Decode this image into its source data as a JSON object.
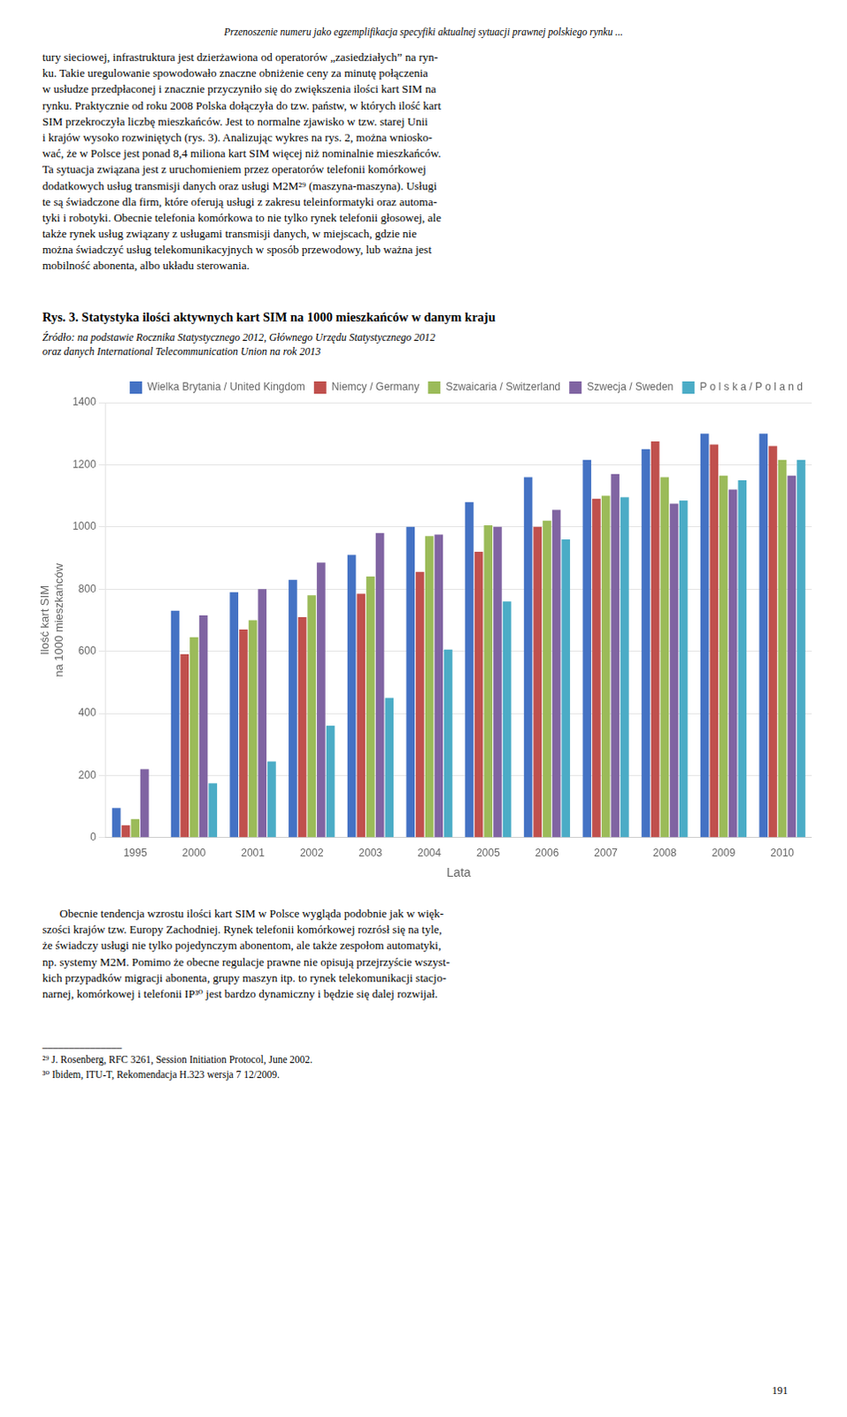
{
  "chart_data": {
    "type": "bar",
    "title": "Rys. 3. Statystyka ilości aktywnych kart SIM na 1000 mieszkańców w danym kraju",
    "xlabel": "Lata",
    "ylabel": "Ilość kart SIM\nna 1000 mieszkańców",
    "categories": [
      "1995",
      "2000",
      "2001",
      "2002",
      "2003",
      "2004",
      "2005",
      "2006",
      "2007",
      "2008",
      "2009",
      "2010"
    ],
    "series": [
      {
        "name": "Wielka Brytania / United Kingdom",
        "color": "#4472C4",
        "values": [
          95,
          730,
          790,
          830,
          910,
          1000,
          1080,
          1160,
          1215,
          1250,
          1300,
          1300
        ]
      },
      {
        "name": "Niemcy / Germany",
        "color": "#C0504D",
        "values": [
          40,
          590,
          670,
          710,
          785,
          855,
          920,
          1000,
          1090,
          1275,
          1265,
          1260
        ]
      },
      {
        "name": "Szwaicaria / Switzerland",
        "color": "#9BBB59",
        "values": [
          60,
          645,
          700,
          780,
          840,
          970,
          1005,
          1020,
          1100,
          1160,
          1165,
          1215
        ]
      },
      {
        "name": "Szwecja / Sweden",
        "color": "#8064A2",
        "values": [
          220,
          715,
          800,
          885,
          980,
          975,
          1000,
          1055,
          1170,
          1075,
          1120,
          1165
        ]
      },
      {
        "name": "P o l s k a / P o l a n d",
        "color": "#4BACC6",
        "values": [
          0,
          175,
          245,
          360,
          450,
          605,
          760,
          960,
          1095,
          1085,
          1150,
          1215
        ]
      }
    ],
    "ylim": [
      0,
      1400
    ],
    "yticks": [
      0,
      200,
      400,
      600,
      800,
      1000,
      1200,
      1400
    ],
    "grid": true,
    "legend": "upper right",
    "annotations": [
      "Przenoszenie numeru jako egzemplifikacja specyfiki aktualnej sytuacji prawnej polskiego rynku ...",
      "tury sieciowej, infrastruktura jest dzierżawiona od operatorów „zasiedziałych” na ryn-\nku. Takie uregulowanie spowodowało znaczne obniżenie ceny za minutę połączenia\nw usłudze przedpłaconej i znacznie przyczyniło się do zwiększenia ilości kart SIM na\nrynku. Praktycznie od roku 2008 Polska dołączyła do tzw. państw, w których ilość kart\nSIM przekroczyła liczbę mieszkańców. Jest to normalne zjawisko w tzw. starej Unii\ni krajów wysoko rozwiniętych (rys. 3). Analizując wykres na rys. 2, można wniosko-\nwać, że w Polsce jest ponad 8,4 miliona kart SIM więcej niż nominalnie mieszkańców.\nTa sytuacja związana jest z uruchomieniem przez operatorów telefonii komórkowej\ndodatkowych usług transmisji danych oraz usługi M2M²⁹ (maszyna-maszyna). Usługi\nte są świadczone dla firm, które oferują usługi z zakresu teleinformatyki oraz automa-\ntyki i robotyki. Obecnie telefonia komórkowa to nie tylko rynek telefonii głosowej, ale\ntakże rynek usług związany z usługami transmisji danych, w miejscach, gdzie nie\nmożna świadczyć usług telekomunikacyjnych w sposób przewodowy, lub ważna jest\nmobilność abonenta, albo układu sterowania.",
      "Źródło: na podstawie Rocznika Statystycznego 2012, Głównego Urzędu Statystycznego 2012\noraz danych International Telecommunication Union na rok 2013",
      "      Obecnie tendencja wzrostu ilości kart SIM w Polsce wygląda podobnie jak w więk-\nszości krajów tzw. Europy Zachodniej. Rynek telefonii komórkowej rozrósł się na tyle,\nże świadczy usługi nie tylko pojedynczym abonentom, ale także zespołom automatyki,\nnp. systemy M2M. Pomimo że obecne regulacje prawne nie opisują przejrzyście wszyst-\nkich przypadków migracji abonenta, grupy maszyn itp. to rynek telekomunikacji stacjo-\nnarnej, komórkowej i telefonii IP³⁰ jest bardzo dynamiczny i będzie się dalej rozwijał.",
      "_______________",
      "²⁹ J. Rosenberg, RFC 3261, Session Initiation Protocol, June 2002.",
      "³⁰ Ibidem, ITU-T, Rekomendacja H.323 wersja 7 12/2009.",
      "191"
    ]
  }
}
